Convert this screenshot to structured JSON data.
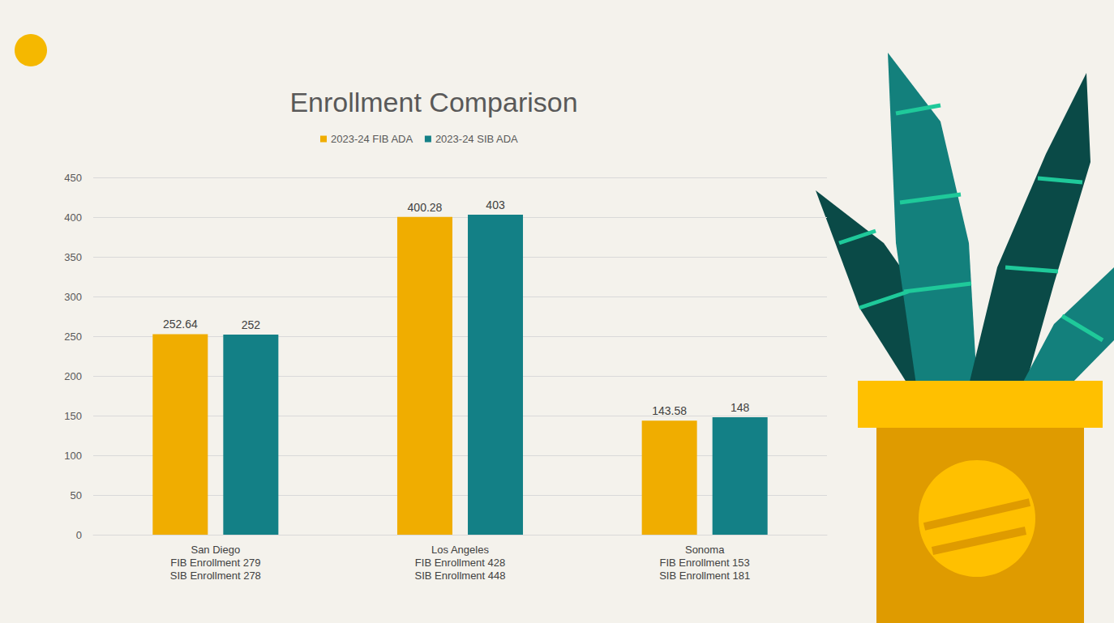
{
  "chart_data": {
    "type": "bar",
    "title": "Enrollment Comparison",
    "categories": [
      "San Diego\nFIB Enrollment 279\nSIB Enrollment 278",
      "Los Angeles\nFIB Enrollment 428\nSIB Enrollment 448",
      "Sonoma\nFIB Enrollment 153\nSIB Enrollment 181"
    ],
    "series": [
      {
        "name": "2023-24 FIB ADA",
        "color": "#f0ad00",
        "values": [
          252.64,
          400.28,
          143.58
        ]
      },
      {
        "name": "2023-24 SIB ADA",
        "color": "#138086",
        "values": [
          252,
          403,
          148
        ]
      }
    ],
    "ylim": [
      0,
      450
    ],
    "yticks": [
      0,
      50,
      100,
      150,
      200,
      250,
      300,
      350,
      400,
      450
    ],
    "grid": true,
    "legend": "top",
    "data_labels": true
  }
}
